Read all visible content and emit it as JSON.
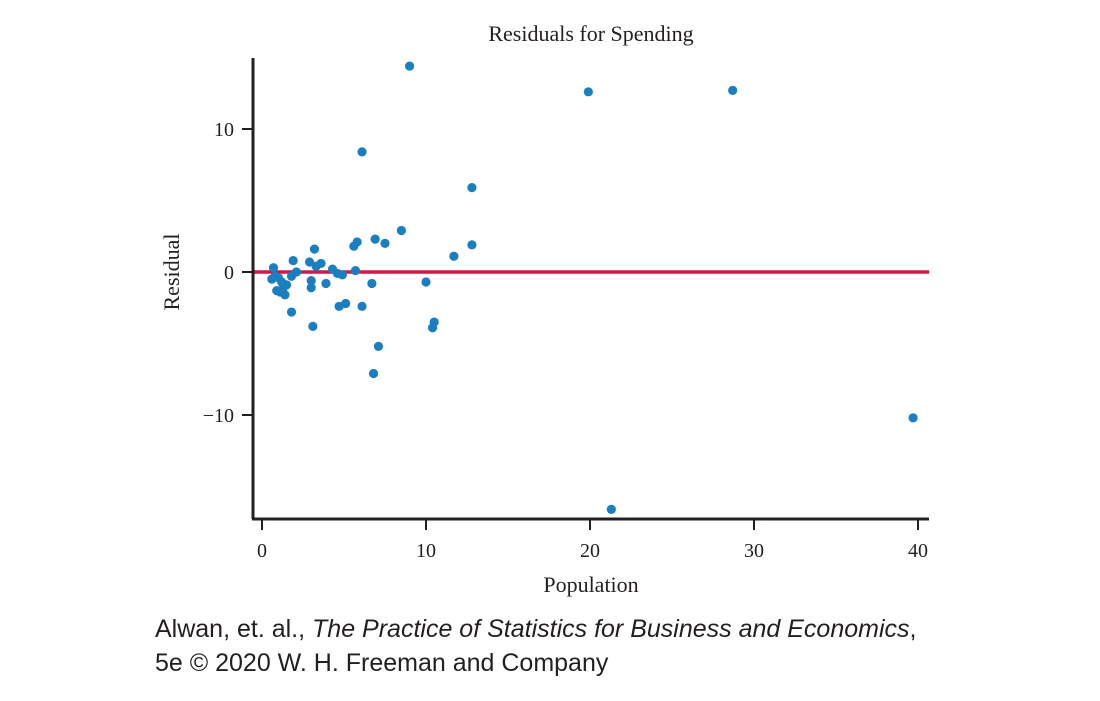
{
  "chart_data": {
    "type": "scatter",
    "title": "Residuals for Spending",
    "xlabel": "Population",
    "ylabel": "Residual",
    "xlim": [
      -0.5,
      40.5
    ],
    "ylim": [
      -17,
      15
    ],
    "x_ticks": [
      0,
      10,
      20,
      30,
      40
    ],
    "y_ticks": [
      -10,
      0,
      10
    ],
    "y_tick_labels": [
      "−10",
      "0",
      "10"
    ],
    "grid": false,
    "marker_color": "#1a7fc1",
    "reference_line": {
      "y": 0,
      "color": "#d4164a"
    },
    "points": [
      {
        "x": 0.7,
        "y": 0.3
      },
      {
        "x": 0.6,
        "y": -0.5
      },
      {
        "x": 0.8,
        "y": -0.3
      },
      {
        "x": 0.9,
        "y": -1.3
      },
      {
        "x": 1.0,
        "y": -0.4
      },
      {
        "x": 1.1,
        "y": -1.4
      },
      {
        "x": 1.2,
        "y": -0.7
      },
      {
        "x": 1.3,
        "y": -1.1
      },
      {
        "x": 1.4,
        "y": -1.6
      },
      {
        "x": 1.5,
        "y": -0.9
      },
      {
        "x": 1.8,
        "y": -0.3
      },
      {
        "x": 1.9,
        "y": 0.8
      },
      {
        "x": 1.8,
        "y": -2.8
      },
      {
        "x": 2.1,
        "y": 0.0
      },
      {
        "x": 2.9,
        "y": 0.7
      },
      {
        "x": 3.0,
        "y": -0.6
      },
      {
        "x": 3.0,
        "y": -1.1
      },
      {
        "x": 3.1,
        "y": -3.8
      },
      {
        "x": 3.2,
        "y": 1.6
      },
      {
        "x": 3.3,
        "y": 0.4
      },
      {
        "x": 3.6,
        "y": 0.6
      },
      {
        "x": 3.9,
        "y": -0.8
      },
      {
        "x": 4.3,
        "y": 0.2
      },
      {
        "x": 4.6,
        "y": -0.1
      },
      {
        "x": 4.9,
        "y": -0.2
      },
      {
        "x": 4.7,
        "y": -2.4
      },
      {
        "x": 5.1,
        "y": -2.2
      },
      {
        "x": 5.6,
        "y": 1.8
      },
      {
        "x": 5.7,
        "y": 0.1
      },
      {
        "x": 5.8,
        "y": 2.1
      },
      {
        "x": 6.1,
        "y": 8.4
      },
      {
        "x": 6.1,
        "y": -2.4
      },
      {
        "x": 6.7,
        "y": -0.8
      },
      {
        "x": 6.9,
        "y": 2.3
      },
      {
        "x": 6.8,
        "y": -7.1
      },
      {
        "x": 7.1,
        "y": -5.2
      },
      {
        "x": 7.5,
        "y": 2.0
      },
      {
        "x": 8.5,
        "y": 2.9
      },
      {
        "x": 9.0,
        "y": 14.4
      },
      {
        "x": 10.0,
        "y": -0.7
      },
      {
        "x": 10.4,
        "y": -3.9
      },
      {
        "x": 10.5,
        "y": -3.5
      },
      {
        "x": 11.7,
        "y": 1.1
      },
      {
        "x": 12.8,
        "y": 5.9
      },
      {
        "x": 12.8,
        "y": 1.9
      },
      {
        "x": 19.9,
        "y": 12.6
      },
      {
        "x": 21.3,
        "y": -16.6
      },
      {
        "x": 28.7,
        "y": 12.7
      },
      {
        "x": 39.7,
        "y": -10.2
      }
    ]
  },
  "credit": {
    "authors": "Alwan, et. al., ",
    "book_title": "The Practice of Statistics for Business and Economics",
    "after_title": ",",
    "line2": "5e © 2020 W. H. Freeman and Company"
  }
}
